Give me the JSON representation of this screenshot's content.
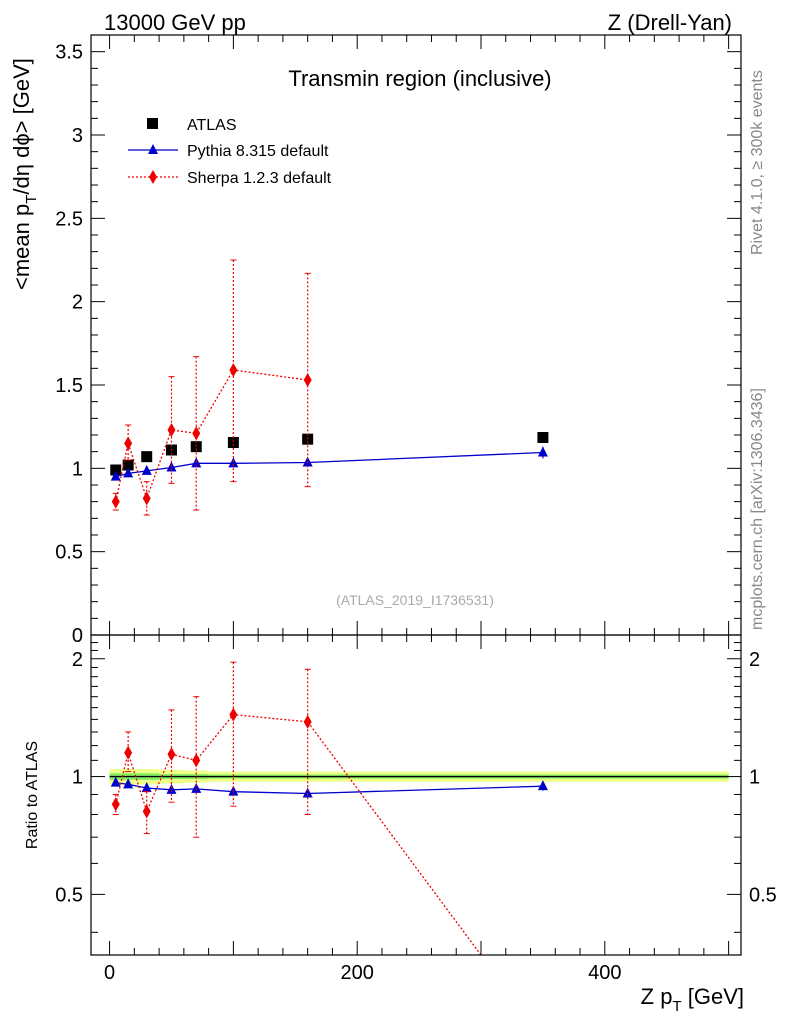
{
  "header": {
    "left": "13000 GeV pp",
    "right": "Z (Drell-Yan)"
  },
  "side_labels": {
    "rivet": "Rivet 4.1.0, ≥ 300k events",
    "mcplots": "mcplots.cern.ch [arXiv:1306.3436]"
  },
  "colors": {
    "atlas": "#000000",
    "pythia": "#0000cc",
    "sherpa": "#ee0000",
    "band_outer": "#eeff88",
    "band_inner": "#88ee66"
  },
  "chart_data": [
    {
      "type": "scatter",
      "panel": "main",
      "title": "Transmin region (inclusive)",
      "watermark": "(ATLAS_2019_I1736531)",
      "ylabel_parts": [
        "<mean p",
        "T",
        "/dη dϕ> [GeV]"
      ],
      "xlim": [
        -15,
        510
      ],
      "ylim": [
        0,
        3.6
      ],
      "yticks": [
        0,
        0.5,
        1,
        1.5,
        2,
        2.5,
        3,
        3.5
      ],
      "ytick_labels": [
        "0",
        "0.5",
        "1",
        "1.5",
        "2",
        "2.5",
        "3",
        "3.5"
      ],
      "legend": [
        "ATLAS",
        "Pythia 8.315 default",
        "Sherpa 1.2.3 default"
      ],
      "series": [
        {
          "name": "ATLAS",
          "style": "square",
          "x": [
            5,
            15,
            30,
            50,
            70,
            100,
            160,
            350
          ],
          "y": [
            0.99,
            1.02,
            1.07,
            1.11,
            1.13,
            1.155,
            1.175,
            1.185
          ],
          "err": [
            0.02,
            0.02,
            0.02,
            0.02,
            0.02,
            0.02,
            0.02,
            0.02
          ]
        },
        {
          "name": "Pythia 8.315 default",
          "style": "triangle",
          "x": [
            5,
            15,
            30,
            50,
            70,
            100,
            160,
            350
          ],
          "y": [
            0.95,
            0.97,
            0.985,
            1.005,
            1.03,
            1.03,
            1.035,
            1.095
          ],
          "err": [
            0.015,
            0.015,
            0.015,
            0.015,
            0.015,
            0.015,
            0.015,
            0.035
          ]
        },
        {
          "name": "Sherpa 1.2.3 default",
          "style": "diamond",
          "x": [
            5,
            15,
            30,
            50,
            70,
            100,
            160
          ],
          "y": [
            0.8,
            1.15,
            0.82,
            1.23,
            1.21,
            1.59,
            1.53
          ],
          "err_lo": [
            0.05,
            0.1,
            0.1,
            0.32,
            0.46,
            0.67,
            0.64
          ],
          "err_hi": [
            0.05,
            0.11,
            0.1,
            0.32,
            0.46,
            0.66,
            0.64
          ]
        }
      ]
    },
    {
      "type": "scatter",
      "panel": "ratio",
      "ylabel": "Ratio to ATLAS",
      "xlabel_parts": [
        "Z p",
        "T",
        " [GeV]"
      ],
      "xlim": [
        -15,
        510
      ],
      "ylim": [
        0.35,
        2.3
      ],
      "ylog": true,
      "yticks": [
        0.5,
        1,
        2
      ],
      "ytick_labels": [
        "0.5",
        "1",
        "2"
      ],
      "xticks": [
        0,
        200,
        400
      ],
      "xtick_labels": [
        "0",
        "200",
        "400"
      ],
      "series": [
        {
          "name": "Pythia 8.315 default",
          "style": "triangle",
          "x": [
            5,
            15,
            30,
            50,
            70,
            100,
            160,
            350
          ],
          "y": [
            0.965,
            0.955,
            0.935,
            0.925,
            0.93,
            0.915,
            0.905,
            0.945
          ],
          "err": [
            0.015,
            0.015,
            0.015,
            0.015,
            0.015,
            0.015,
            0.015,
            0.025
          ]
        },
        {
          "name": "Sherpa 1.2.3 default",
          "style": "diamond",
          "x": [
            5,
            15,
            30,
            50,
            70,
            100,
            160
          ],
          "y": [
            0.85,
            1.15,
            0.815,
            1.14,
            1.1,
            1.44,
            1.38
          ],
          "err_lo": [
            0.05,
            0.12,
            0.1,
            0.28,
            0.4,
            0.6,
            0.58
          ],
          "err_hi": [
            0.05,
            0.15,
            0.1,
            0.34,
            0.5,
            0.52,
            0.5
          ],
          "tail_to": [
            300,
            0.35
          ]
        }
      ],
      "band": {
        "x_edges": [
          0,
          10,
          20,
          40,
          60,
          80,
          120,
          200,
          500
        ],
        "outer": [
          0.045,
          0.045,
          0.045,
          0.04,
          0.035,
          0.03,
          0.03,
          0.03
        ],
        "inner": [
          0.02,
          0.02,
          0.02,
          0.015,
          0.015,
          0.012,
          0.012,
          0.012
        ]
      }
    }
  ]
}
